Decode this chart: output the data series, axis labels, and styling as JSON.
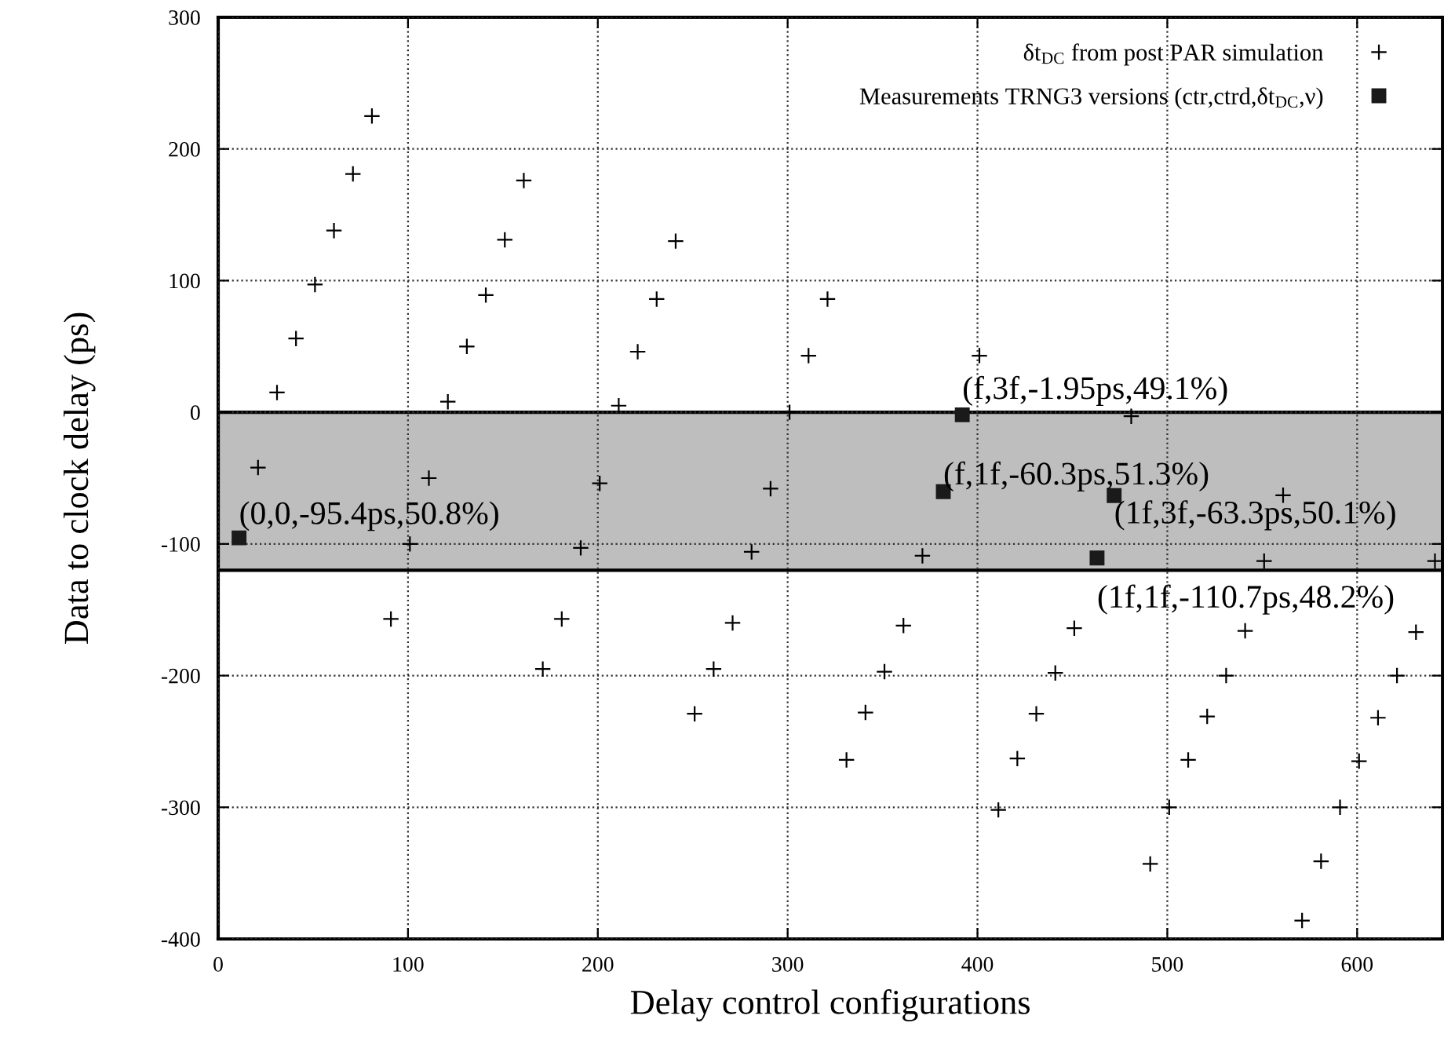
{
  "chart_data": {
    "type": "scatter",
    "xlabel": "Delay control configurations",
    "ylabel": "Data to clock delay (ps)",
    "xlim": [
      0,
      645
    ],
    "ylim": [
      -400,
      300
    ],
    "xticks": [
      0,
      100,
      200,
      300,
      400,
      500,
      600
    ],
    "yticks": [
      -400,
      -300,
      -200,
      -100,
      0,
      100,
      200,
      300
    ],
    "grid": true,
    "legend": "top right",
    "bands": [
      {
        "axis": "y",
        "from": -120,
        "to": 0,
        "color": "#bebebe"
      }
    ],
    "series": [
      {
        "name": "δt$_{DC}$ from post PAR simulation",
        "color": "#000000",
        "marker": "cross",
        "x": [
          21,
          31,
          41,
          51,
          61,
          71,
          81,
          91,
          101,
          111,
          121,
          131,
          141,
          151,
          161,
          171,
          181,
          191,
          201,
          211,
          221,
          231,
          241,
          251,
          261,
          271,
          281,
          291,
          301,
          311,
          321,
          331,
          341,
          351,
          361,
          371,
          401,
          411,
          421,
          431,
          441,
          451,
          481,
          491,
          501,
          511,
          521,
          531,
          541,
          551,
          561,
          571,
          581,
          591,
          601,
          611,
          621,
          631,
          641
        ],
        "values": [
          -42,
          15,
          56,
          97,
          138,
          181,
          225,
          -157,
          -100,
          -50,
          8,
          50,
          89,
          131,
          176,
          -195,
          -157,
          -103,
          -54,
          5,
          46,
          86,
          130,
          -229,
          -195,
          -160,
          -106,
          -58,
          0,
          43,
          86,
          -264,
          -228,
          -197,
          -162,
          -109,
          43,
          -302,
          -263,
          -229,
          -198,
          -164,
          -3,
          -343,
          -300,
          -264,
          -231,
          -200,
          -166,
          -113,
          -63,
          -386,
          -341,
          -300,
          -265,
          -232,
          -200,
          -167,
          -113
        ]
      },
      {
        "name": "Measurements TRNG3 versions (ctr,ctrd,δt$_{DC}$,ν)",
        "color": "#1a1a1a",
        "marker": "square",
        "x": [
          11,
          392,
          382,
          472,
          463
        ],
        "values": [
          -95.4,
          -1.95,
          -60.3,
          -63.3,
          -110.7
        ]
      }
    ],
    "annotations": [
      {
        "text": "(0,0,-95.4ps,50.8%)",
        "x": 11,
        "y": -95.4
      },
      {
        "text": "(f,3f,-1.95ps,49.1%)",
        "x": 392,
        "y": -1.95
      },
      {
        "text": "(f,1f,-60.3ps,51.3%)",
        "x": 382,
        "y": -60.3
      },
      {
        "text": "(1f,3f,-63.3ps,50.1%)",
        "x": 472,
        "y": -63.3
      },
      {
        "text": "(1f,1f,-110.7ps,48.2%)",
        "x": 463,
        "y": -110.7
      }
    ]
  }
}
